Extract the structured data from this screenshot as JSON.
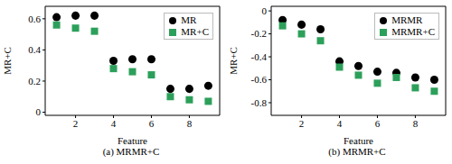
{
  "chart_data": [
    {
      "type": "scatter",
      "title": "(a) MRMR+C",
      "x_label": "Feature",
      "y_label": "MR+C",
      "x": [
        1,
        2,
        3,
        4,
        5,
        6,
        7,
        8,
        9
      ],
      "series": [
        {
          "name": "MR",
          "color": "#000000",
          "marker": "circle",
          "values": [
            0.61,
            0.62,
            0.62,
            0.33,
            0.34,
            0.34,
            0.15,
            0.15,
            0.17
          ]
        },
        {
          "name": "MR+C",
          "color": "#2ca05a",
          "marker": "square",
          "values": [
            0.56,
            0.54,
            0.52,
            0.28,
            0.26,
            0.24,
            0.1,
            0.08,
            0.07
          ]
        }
      ],
      "xlim": [
        0.4,
        9.6
      ],
      "xticks": [
        2,
        4,
        6,
        8
      ],
      "ylim": [
        -0.02,
        0.68
      ],
      "yticks": [
        0,
        0.2,
        0.4,
        0.6
      ],
      "legend": "upper right"
    },
    {
      "type": "scatter",
      "title": "(b) MRMR+C",
      "x_label": "Feature",
      "y_label": "MR+C",
      "x": [
        1,
        2,
        3,
        4,
        5,
        6,
        7,
        8,
        9
      ],
      "series": [
        {
          "name": "MRMR",
          "color": "#000000",
          "marker": "circle",
          "values": [
            -0.08,
            -0.12,
            -0.16,
            -0.44,
            -0.48,
            -0.53,
            -0.54,
            -0.58,
            -0.6
          ]
        },
        {
          "name": "MRMR+C",
          "color": "#2ca05a",
          "marker": "square",
          "values": [
            -0.13,
            -0.2,
            -0.26,
            -0.49,
            -0.56,
            -0.63,
            -0.58,
            -0.67,
            -0.7
          ]
        }
      ],
      "xlim": [
        0.4,
        9.6
      ],
      "xticks": [
        2,
        4,
        6,
        8
      ],
      "ylim": [
        -0.91,
        0.04
      ],
      "yticks": [
        0,
        -0.2,
        -0.4,
        -0.6,
        -0.8
      ],
      "legend": "upper right"
    }
  ]
}
